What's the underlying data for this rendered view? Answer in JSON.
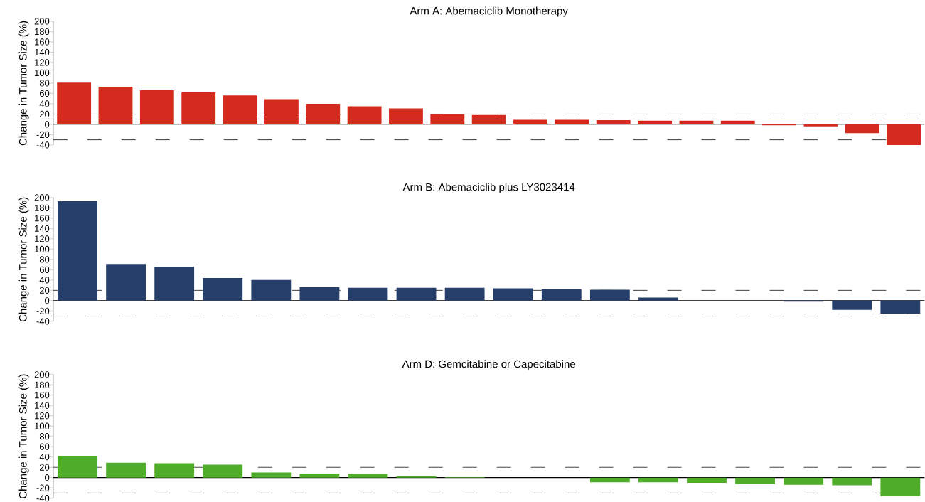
{
  "chart_data": [
    {
      "type": "bar",
      "title": "Arm A: Abemaciclib Monotherapy",
      "ylabel": "Change in Tumor Size (%)",
      "categories": [
        null,
        null,
        null,
        null,
        null,
        null,
        null,
        null,
        null,
        null,
        null,
        null,
        null,
        null,
        null,
        null,
        null,
        null,
        null,
        null,
        null
      ],
      "values": [
        81,
        73,
        66,
        62,
        56,
        49,
        40,
        35,
        31,
        20,
        18,
        9,
        9,
        8,
        7,
        7,
        7,
        -2,
        -4,
        -17,
        -40
      ],
      "color": "#d52b1e",
      "ylim": [
        -40,
        200
      ],
      "yticks": [
        -40,
        -20,
        0,
        20,
        40,
        60,
        80,
        100,
        120,
        140,
        160,
        180,
        200
      ],
      "tick_labels": "y",
      "ref_lines": [
        {
          "axis": "y",
          "value": 20,
          "color": "#000000",
          "line_style": "dashed"
        },
        {
          "axis": "y",
          "value": -30,
          "color": "#000000",
          "line_style": "dashed"
        }
      ]
    },
    {
      "type": "bar",
      "title": "Arm B: Abemaciclib plus LY3023414",
      "ylabel": "Change in Tumor Size (%)",
      "categories": [
        null,
        null,
        null,
        null,
        null,
        null,
        null,
        null,
        null,
        null,
        null,
        null,
        null,
        null,
        null,
        null,
        null,
        null
      ],
      "values": [
        193,
        71,
        66,
        44,
        40,
        26,
        25,
        25,
        25,
        24,
        22,
        21,
        6,
        0,
        0,
        -2,
        -18,
        -25
      ],
      "color": "#253e6a",
      "ylim": [
        -40,
        200
      ],
      "yticks": [
        -40,
        -20,
        0,
        20,
        40,
        60,
        80,
        100,
        120,
        140,
        160,
        180,
        200
      ],
      "tick_labels": "y",
      "ref_lines": [
        {
          "axis": "y",
          "value": 20,
          "color": "#000000",
          "line_style": "dashed"
        },
        {
          "axis": "y",
          "value": -30,
          "color": "#000000",
          "line_style": "dashed"
        }
      ]
    },
    {
      "type": "bar",
      "title": "Arm D: Gemcitabine or Capecitabine",
      "ylabel": "Change in Tumor Size (%)",
      "categories": [
        null,
        null,
        null,
        null,
        null,
        null,
        null,
        null,
        null,
        null,
        null,
        null,
        null,
        null,
        null,
        null,
        null,
        null
      ],
      "values": [
        42,
        29,
        28,
        25,
        10,
        8,
        7,
        3,
        1,
        0,
        0,
        -9,
        -9,
        -10,
        -13,
        -14,
        -15,
        -36
      ],
      "color": "#4fad2a",
      "ylim": [
        -40,
        200
      ],
      "yticks": [
        -40,
        -20,
        0,
        20,
        40,
        60,
        80,
        100,
        120,
        140,
        160,
        180,
        200
      ],
      "tick_labels": "y",
      "ref_lines": [
        {
          "axis": "y",
          "value": 20,
          "color": "#000000",
          "line_style": "dashed"
        },
        {
          "axis": "y",
          "value": -30,
          "color": "#000000",
          "line_style": "dashed"
        }
      ]
    }
  ]
}
